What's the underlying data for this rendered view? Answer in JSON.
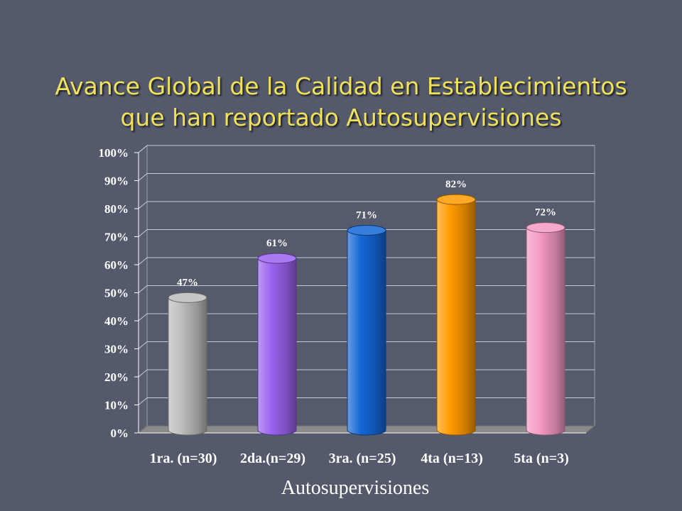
{
  "slide": {
    "title_line1": "Avance Global de la Calidad en Establecimientos",
    "title_line2": "que han reportado Autosupervisiones"
  },
  "chart_data": {
    "type": "bar",
    "categories": [
      "1ra. (n=30)",
      "2da.(n=29)",
      "3ra. (n=25)",
      "4ta (n=13)",
      "5ta (n=3)"
    ],
    "values": [
      47,
      61,
      71,
      82,
      72
    ],
    "data_labels": [
      "47%",
      "61%",
      "71%",
      "82%",
      "72%"
    ],
    "bar_colors": [
      "#bdbdbd",
      "#9a63ee",
      "#1467d6",
      "#ff9a00",
      "#f59ac4"
    ],
    "xlabel": "Autosupervisiones",
    "ylabel": "",
    "ylim": [
      0,
      100
    ],
    "yticks": [
      "0%",
      "10%",
      "20%",
      "30%",
      "40%",
      "50%",
      "60%",
      "70%",
      "80%",
      "90%",
      "100%"
    ],
    "grid": true,
    "legend": "none"
  }
}
